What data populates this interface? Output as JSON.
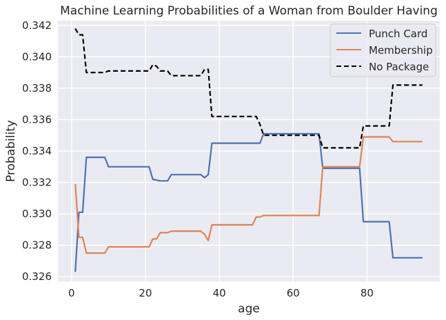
{
  "chart_data": {
    "type": "line",
    "title": "Machine Learning Probabilities of a Woman from Boulder Having",
    "xlabel": "age",
    "ylabel": "Probability",
    "xlim": [
      -3.7,
      99.7
    ],
    "ylim": [
      0.3257,
      0.3423
    ],
    "xticks": [
      0,
      20,
      40,
      60,
      80
    ],
    "xtick_labels": [
      "0",
      "20",
      "40",
      "60",
      "80"
    ],
    "yticks": [
      0.326,
      0.328,
      0.33,
      0.332,
      0.334,
      0.336,
      0.338,
      0.34,
      0.342
    ],
    "ytick_labels": [
      "0.326",
      "0.328",
      "0.330",
      "0.332",
      "0.334",
      "0.336",
      "0.338",
      "0.340",
      "0.342"
    ],
    "grid": true,
    "legend_position": "top-right",
    "series": [
      {
        "name": "Punch Card",
        "color": "#4c72b0",
        "dash": "solid",
        "points": [
          [
            1,
            0.3263
          ],
          [
            2,
            0.3301
          ],
          [
            3,
            0.3301
          ],
          [
            4,
            0.3336
          ],
          [
            9,
            0.3336
          ],
          [
            10,
            0.333
          ],
          [
            21,
            0.333
          ],
          [
            22,
            0.3322
          ],
          [
            24,
            0.3321
          ],
          [
            26,
            0.3321
          ],
          [
            27,
            0.3325
          ],
          [
            35,
            0.3325
          ],
          [
            36,
            0.3323
          ],
          [
            37,
            0.3325
          ],
          [
            38,
            0.3345
          ],
          [
            50,
            0.3345
          ],
          [
            51,
            0.3345
          ],
          [
            52,
            0.3351
          ],
          [
            67,
            0.3351
          ],
          [
            68,
            0.3329
          ],
          [
            78,
            0.3329
          ],
          [
            79,
            0.3295
          ],
          [
            86,
            0.3295
          ],
          [
            87,
            0.3272
          ],
          [
            95,
            0.3272
          ]
        ]
      },
      {
        "name": "Membership",
        "color": "#dd8452",
        "dash": "solid",
        "points": [
          [
            1,
            0.3319
          ],
          [
            2,
            0.3285
          ],
          [
            3,
            0.3285
          ],
          [
            4,
            0.3275
          ],
          [
            9,
            0.3275
          ],
          [
            10,
            0.3279
          ],
          [
            21,
            0.3279
          ],
          [
            22,
            0.3284
          ],
          [
            23,
            0.3284
          ],
          [
            24,
            0.3288
          ],
          [
            26,
            0.3288
          ],
          [
            27,
            0.3289
          ],
          [
            35,
            0.3289
          ],
          [
            36,
            0.3287
          ],
          [
            37,
            0.3283
          ],
          [
            38,
            0.3293
          ],
          [
            49,
            0.3293
          ],
          [
            50,
            0.3298
          ],
          [
            51,
            0.3298
          ],
          [
            52,
            0.3299
          ],
          [
            67,
            0.3299
          ],
          [
            68,
            0.333
          ],
          [
            78,
            0.333
          ],
          [
            79,
            0.3349
          ],
          [
            86,
            0.3349
          ],
          [
            87,
            0.3346
          ],
          [
            95,
            0.3346
          ]
        ]
      },
      {
        "name": "No Package",
        "color": "#000000",
        "dash": "dashed",
        "points": [
          [
            1,
            0.3418
          ],
          [
            2,
            0.3414
          ],
          [
            3,
            0.3414
          ],
          [
            4,
            0.339
          ],
          [
            9,
            0.339
          ],
          [
            10,
            0.3391
          ],
          [
            21,
            0.3391
          ],
          [
            22,
            0.3395
          ],
          [
            23,
            0.3394
          ],
          [
            24,
            0.3391
          ],
          [
            26,
            0.3391
          ],
          [
            27,
            0.3388
          ],
          [
            35,
            0.3388
          ],
          [
            36,
            0.3392
          ],
          [
            37,
            0.3392
          ],
          [
            38,
            0.3362
          ],
          [
            50,
            0.3362
          ],
          [
            51,
            0.3357
          ],
          [
            52,
            0.335
          ],
          [
            67,
            0.335
          ],
          [
            68,
            0.3342
          ],
          [
            78,
            0.3342
          ],
          [
            79,
            0.3356
          ],
          [
            86,
            0.3356
          ],
          [
            87,
            0.3382
          ],
          [
            95,
            0.3382
          ]
        ]
      }
    ]
  }
}
